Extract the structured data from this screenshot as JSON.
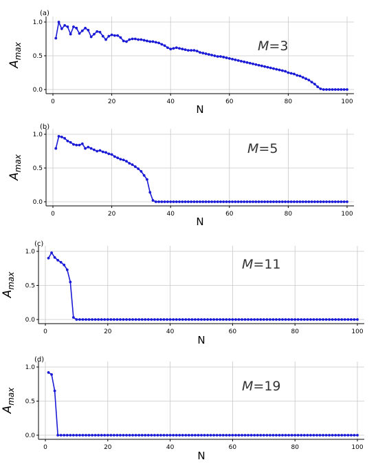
{
  "chart_data": [
    {
      "type": "line",
      "panel_label": "(a)",
      "annotation": {
        "var": "M",
        "eq": "=",
        "val": "3"
      },
      "xlabel": "N",
      "ylabel": {
        "main": "A",
        "sub": "max"
      },
      "xlim": [
        0,
        100
      ],
      "ylim": [
        0.0,
        1.0
      ],
      "xticks": [
        "0",
        "20",
        "40",
        "60",
        "80",
        "100"
      ],
      "yticks": [
        "0.0",
        "0.5",
        "1.0"
      ],
      "grid": true,
      "color": "#1a1ad6",
      "series": [
        {
          "x": [
            1,
            2,
            3,
            4,
            5,
            6,
            7,
            8,
            9,
            10,
            11,
            12,
            13,
            14,
            15,
            16,
            17,
            18,
            19,
            20,
            21,
            22,
            23,
            24,
            25,
            26,
            27,
            28,
            29,
            30,
            31,
            32,
            33,
            34,
            35,
            36,
            37,
            38,
            39,
            40,
            41,
            42,
            43,
            44,
            45,
            46,
            47,
            48,
            49,
            50,
            51,
            52,
            53,
            54,
            55,
            56,
            57,
            58,
            59,
            60,
            61,
            62,
            63,
            64,
            65,
            66,
            67,
            68,
            69,
            70,
            71,
            72,
            73,
            74,
            75,
            76,
            77,
            78,
            79,
            80,
            81,
            82,
            83,
            84,
            85,
            86,
            87,
            88,
            89,
            90,
            91,
            92,
            93,
            94,
            95,
            96,
            97,
            98,
            99,
            100
          ],
          "values": [
            0.76,
            1.0,
            0.9,
            0.95,
            0.93,
            0.82,
            0.93,
            0.91,
            0.83,
            0.87,
            0.91,
            0.88,
            0.78,
            0.82,
            0.86,
            0.85,
            0.79,
            0.74,
            0.79,
            0.81,
            0.8,
            0.8,
            0.77,
            0.72,
            0.71,
            0.74,
            0.75,
            0.75,
            0.74,
            0.74,
            0.73,
            0.72,
            0.71,
            0.71,
            0.7,
            0.69,
            0.67,
            0.65,
            0.62,
            0.6,
            0.61,
            0.62,
            0.61,
            0.6,
            0.59,
            0.58,
            0.58,
            0.58,
            0.57,
            0.55,
            0.54,
            0.53,
            0.52,
            0.51,
            0.5,
            0.49,
            0.49,
            0.48,
            0.47,
            0.46,
            0.45,
            0.44,
            0.43,
            0.42,
            0.41,
            0.4,
            0.39,
            0.38,
            0.37,
            0.36,
            0.35,
            0.34,
            0.33,
            0.32,
            0.31,
            0.3,
            0.29,
            0.28,
            0.27,
            0.25,
            0.24,
            0.23,
            0.21,
            0.2,
            0.18,
            0.16,
            0.14,
            0.11,
            0.08,
            0.04,
            0.01,
            0.0,
            0.0,
            0.0,
            0.0,
            0.0,
            0.0,
            0.0,
            0.0,
            0.0
          ]
        }
      ]
    },
    {
      "type": "line",
      "panel_label": "(b)",
      "annotation": {
        "var": "M",
        "eq": "=",
        "val": "5"
      },
      "xlabel": "N",
      "ylabel": {
        "main": "A",
        "sub": "max"
      },
      "xlim": [
        0,
        100
      ],
      "ylim": [
        0.0,
        1.0
      ],
      "xticks": [
        "0",
        "20",
        "40",
        "60",
        "80",
        "100"
      ],
      "yticks": [
        "0.0",
        "0.5",
        "1.0"
      ],
      "grid": true,
      "color": "#1a1ad6",
      "series": [
        {
          "x": [
            1,
            2,
            3,
            4,
            5,
            6,
            7,
            8,
            9,
            10,
            11,
            12,
            13,
            14,
            15,
            16,
            17,
            18,
            19,
            20,
            21,
            22,
            23,
            24,
            25,
            26,
            27,
            28,
            29,
            30,
            31,
            32,
            33,
            34,
            35,
            36,
            37,
            38,
            39,
            40,
            41,
            42,
            43,
            44,
            45,
            46,
            47,
            48,
            49,
            50,
            51,
            52,
            53,
            54,
            55,
            56,
            57,
            58,
            59,
            60,
            61,
            62,
            63,
            64,
            65,
            66,
            67,
            68,
            69,
            70,
            71,
            72,
            73,
            74,
            75,
            76,
            77,
            78,
            79,
            80,
            81,
            82,
            83,
            84,
            85,
            86,
            87,
            88,
            89,
            90,
            91,
            92,
            93,
            94,
            95,
            96,
            97,
            98,
            99,
            100
          ],
          "values": [
            0.79,
            0.97,
            0.96,
            0.94,
            0.9,
            0.88,
            0.85,
            0.84,
            0.84,
            0.86,
            0.79,
            0.81,
            0.79,
            0.77,
            0.75,
            0.76,
            0.74,
            0.73,
            0.71,
            0.7,
            0.67,
            0.65,
            0.63,
            0.62,
            0.6,
            0.57,
            0.55,
            0.52,
            0.49,
            0.45,
            0.39,
            0.33,
            0.14,
            0.02,
            0.0,
            0.0,
            0.0,
            0.0,
            0.0,
            0.0,
            0.0,
            0.0,
            0.0,
            0.0,
            0.0,
            0.0,
            0.0,
            0.0,
            0.0,
            0.0,
            0.0,
            0.0,
            0.0,
            0.0,
            0.0,
            0.0,
            0.0,
            0.0,
            0.0,
            0.0,
            0.0,
            0.0,
            0.0,
            0.0,
            0.0,
            0.0,
            0.0,
            0.0,
            0.0,
            0.0,
            0.0,
            0.0,
            0.0,
            0.0,
            0.0,
            0.0,
            0.0,
            0.0,
            0.0,
            0.0,
            0.0,
            0.0,
            0.0,
            0.0,
            0.0,
            0.0,
            0.0,
            0.0,
            0.0,
            0.0,
            0.0,
            0.0,
            0.0,
            0.0,
            0.0,
            0.0,
            0.0,
            0.0,
            0.0,
            0.0
          ]
        }
      ]
    },
    {
      "type": "line",
      "panel_label": "(c)",
      "annotation": {
        "var": "M",
        "eq": "=",
        "val": "11"
      },
      "xlabel": "N",
      "ylabel": {
        "main": "A",
        "sub": "max"
      },
      "xlim": [
        0,
        100
      ],
      "ylim": [
        0.0,
        1.0
      ],
      "xticks": [
        "0",
        "20",
        "40",
        "60",
        "80",
        "100"
      ],
      "yticks": [
        "0.0",
        "0.5",
        "1.0"
      ],
      "grid": true,
      "color": "#1a1ad6",
      "series": [
        {
          "x": [
            1,
            2,
            3,
            4,
            5,
            6,
            7,
            8,
            9,
            10,
            11,
            12,
            13,
            14,
            15,
            16,
            17,
            18,
            19,
            20,
            21,
            22,
            23,
            24,
            25,
            26,
            27,
            28,
            29,
            30,
            31,
            32,
            33,
            34,
            35,
            36,
            37,
            38,
            39,
            40,
            41,
            42,
            43,
            44,
            45,
            46,
            47,
            48,
            49,
            50,
            51,
            52,
            53,
            54,
            55,
            56,
            57,
            58,
            59,
            60,
            61,
            62,
            63,
            64,
            65,
            66,
            67,
            68,
            69,
            70,
            71,
            72,
            73,
            74,
            75,
            76,
            77,
            78,
            79,
            80,
            81,
            82,
            83,
            84,
            85,
            86,
            87,
            88,
            89,
            90,
            91,
            92,
            93,
            94,
            95,
            96,
            97,
            98,
            99,
            100
          ],
          "values": [
            0.9,
            0.98,
            0.91,
            0.87,
            0.84,
            0.8,
            0.73,
            0.55,
            0.03,
            0.0,
            0.0,
            0.0,
            0.0,
            0.0,
            0.0,
            0.0,
            0.0,
            0.0,
            0.0,
            0.0,
            0.0,
            0.0,
            0.0,
            0.0,
            0.0,
            0.0,
            0.0,
            0.0,
            0.0,
            0.0,
            0.0,
            0.0,
            0.0,
            0.0,
            0.0,
            0.0,
            0.0,
            0.0,
            0.0,
            0.0,
            0.0,
            0.0,
            0.0,
            0.0,
            0.0,
            0.0,
            0.0,
            0.0,
            0.0,
            0.0,
            0.0,
            0.0,
            0.0,
            0.0,
            0.0,
            0.0,
            0.0,
            0.0,
            0.0,
            0.0,
            0.0,
            0.0,
            0.0,
            0.0,
            0.0,
            0.0,
            0.0,
            0.0,
            0.0,
            0.0,
            0.0,
            0.0,
            0.0,
            0.0,
            0.0,
            0.0,
            0.0,
            0.0,
            0.0,
            0.0,
            0.0,
            0.0,
            0.0,
            0.0,
            0.0,
            0.0,
            0.0,
            0.0,
            0.0,
            0.0,
            0.0,
            0.0,
            0.0,
            0.0,
            0.0,
            0.0,
            0.0,
            0.0,
            0.0,
            0.0
          ]
        }
      ]
    },
    {
      "type": "line",
      "panel_label": "(d)",
      "annotation": {
        "var": "M",
        "eq": "=",
        "val": "19"
      },
      "xlabel": "N",
      "ylabel": {
        "main": "A",
        "sub": "max"
      },
      "xlim": [
        0,
        100
      ],
      "ylim": [
        0.0,
        1.0
      ],
      "xticks": [
        "0",
        "20",
        "40",
        "60",
        "80",
        "100"
      ],
      "yticks": [
        "0.0",
        "0.5",
        "1.0"
      ],
      "grid": true,
      "color": "#1a1ad6",
      "series": [
        {
          "x": [
            1,
            2,
            3,
            4,
            5,
            6,
            7,
            8,
            9,
            10,
            11,
            12,
            13,
            14,
            15,
            16,
            17,
            18,
            19,
            20,
            21,
            22,
            23,
            24,
            25,
            26,
            27,
            28,
            29,
            30,
            31,
            32,
            33,
            34,
            35,
            36,
            37,
            38,
            39,
            40,
            41,
            42,
            43,
            44,
            45,
            46,
            47,
            48,
            49,
            50,
            51,
            52,
            53,
            54,
            55,
            56,
            57,
            58,
            59,
            60,
            61,
            62,
            63,
            64,
            65,
            66,
            67,
            68,
            69,
            70,
            71,
            72,
            73,
            74,
            75,
            76,
            77,
            78,
            79,
            80,
            81,
            82,
            83,
            84,
            85,
            86,
            87,
            88,
            89,
            90,
            91,
            92,
            93,
            94,
            95,
            96,
            97,
            98,
            99,
            100
          ],
          "values": [
            0.92,
            0.89,
            0.65,
            0.0,
            0.0,
            0.0,
            0.0,
            0.0,
            0.0,
            0.0,
            0.0,
            0.0,
            0.0,
            0.0,
            0.0,
            0.0,
            0.0,
            0.0,
            0.0,
            0.0,
            0.0,
            0.0,
            0.0,
            0.0,
            0.0,
            0.0,
            0.0,
            0.0,
            0.0,
            0.0,
            0.0,
            0.0,
            0.0,
            0.0,
            0.0,
            0.0,
            0.0,
            0.0,
            0.0,
            0.0,
            0.0,
            0.0,
            0.0,
            0.0,
            0.0,
            0.0,
            0.0,
            0.0,
            0.0,
            0.0,
            0.0,
            0.0,
            0.0,
            0.0,
            0.0,
            0.0,
            0.0,
            0.0,
            0.0,
            0.0,
            0.0,
            0.0,
            0.0,
            0.0,
            0.0,
            0.0,
            0.0,
            0.0,
            0.0,
            0.0,
            0.0,
            0.0,
            0.0,
            0.0,
            0.0,
            0.0,
            0.0,
            0.0,
            0.0,
            0.0,
            0.0,
            0.0,
            0.0,
            0.0,
            0.0,
            0.0,
            0.0,
            0.0,
            0.0,
            0.0,
            0.0,
            0.0,
            0.0,
            0.0,
            0.0,
            0.0,
            0.0,
            0.0,
            0.0,
            0.0
          ]
        }
      ]
    }
  ]
}
